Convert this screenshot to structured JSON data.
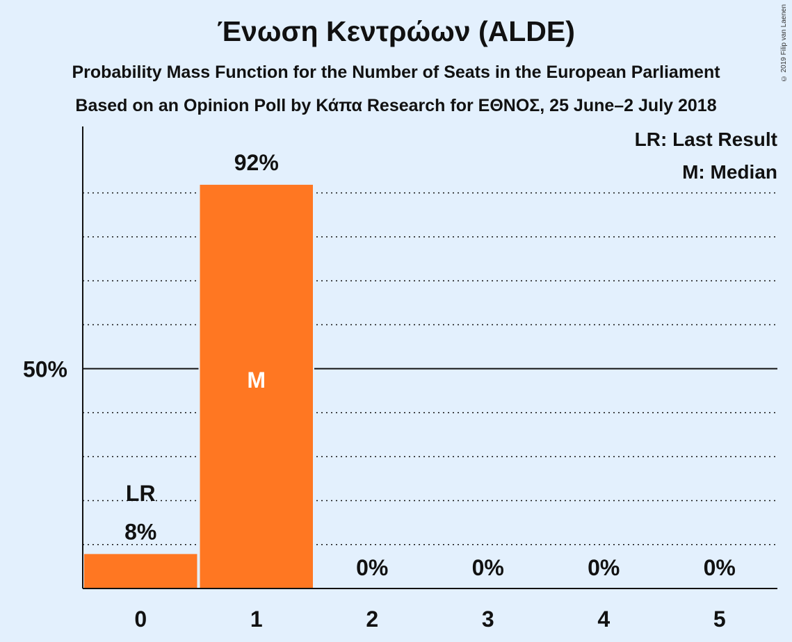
{
  "title": "Ένωση Κεντρώων (ALDE)",
  "subtitle1": "Probability Mass Function for the Number of Seats in the European Parliament",
  "subtitle2": "Based on an Opinion Poll by Κάπα Research for ΕΘΝΟΣ, 25 June–2 July 2018",
  "copyright": "© 2019 Filip van Laenen",
  "legend": {
    "last_result": "LR: Last Result",
    "median": "M: Median"
  },
  "chart_data": {
    "type": "bar",
    "categories": [
      "0",
      "1",
      "2",
      "3",
      "4",
      "5"
    ],
    "values": [
      8,
      92,
      0,
      0,
      0,
      0
    ],
    "value_labels": [
      "8%",
      "92%",
      "0%",
      "0%",
      "0%",
      "0%"
    ],
    "ylim": [
      0,
      100
    ],
    "ytick_label": "50%",
    "ytick_value": 50,
    "last_result_index": 0,
    "last_result_marker": "LR",
    "median_index": 1,
    "median_marker": "M",
    "bar_color": "#ff7722",
    "grid": "dotted every 10%",
    "legend_position": "top-right"
  }
}
